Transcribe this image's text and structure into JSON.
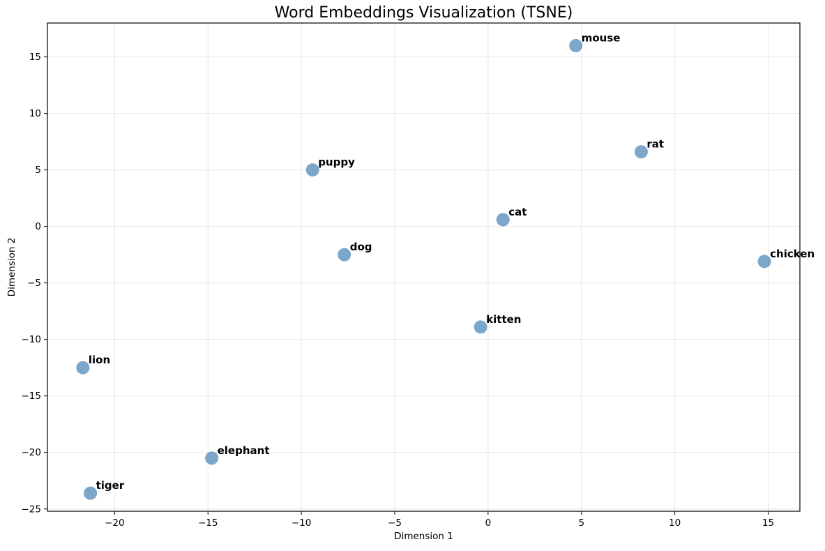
{
  "chart_data": {
    "type": "scatter",
    "title": "Word Embeddings Visualization (TSNE)",
    "xlabel": "Dimension 1",
    "ylabel": "Dimension 2",
    "xlim": [
      -23.6,
      16.7
    ],
    "ylim": [
      -25.2,
      18.0
    ],
    "xticks": [
      -20,
      -15,
      -10,
      -5,
      0,
      5,
      10,
      15
    ],
    "yticks": [
      -25,
      -20,
      -15,
      -10,
      -5,
      0,
      5,
      10,
      15
    ],
    "grid": true,
    "legend_position": "none",
    "points": [
      {
        "label": "mouse",
        "x": 4.7,
        "y": 16.0
      },
      {
        "label": "rat",
        "x": 8.2,
        "y": 6.6
      },
      {
        "label": "puppy",
        "x": -9.4,
        "y": 5.0
      },
      {
        "label": "cat",
        "x": 0.8,
        "y": 0.6
      },
      {
        "label": "dog",
        "x": -7.7,
        "y": -2.5
      },
      {
        "label": "chicken",
        "x": 14.8,
        "y": -3.1
      },
      {
        "label": "kitten",
        "x": -0.4,
        "y": -8.9
      },
      {
        "label": "lion",
        "x": -21.7,
        "y": -12.5
      },
      {
        "label": "elephant",
        "x": -14.8,
        "y": -20.5
      },
      {
        "label": "tiger",
        "x": -21.3,
        "y": -23.6
      }
    ],
    "marker": {
      "color": "#4682B4",
      "opacity": 0.7,
      "radius_px": 9.5
    },
    "colors": {
      "grid": "#e7e7e7",
      "spine": "#000000",
      "background": "#ffffff",
      "text": "#000000"
    }
  }
}
